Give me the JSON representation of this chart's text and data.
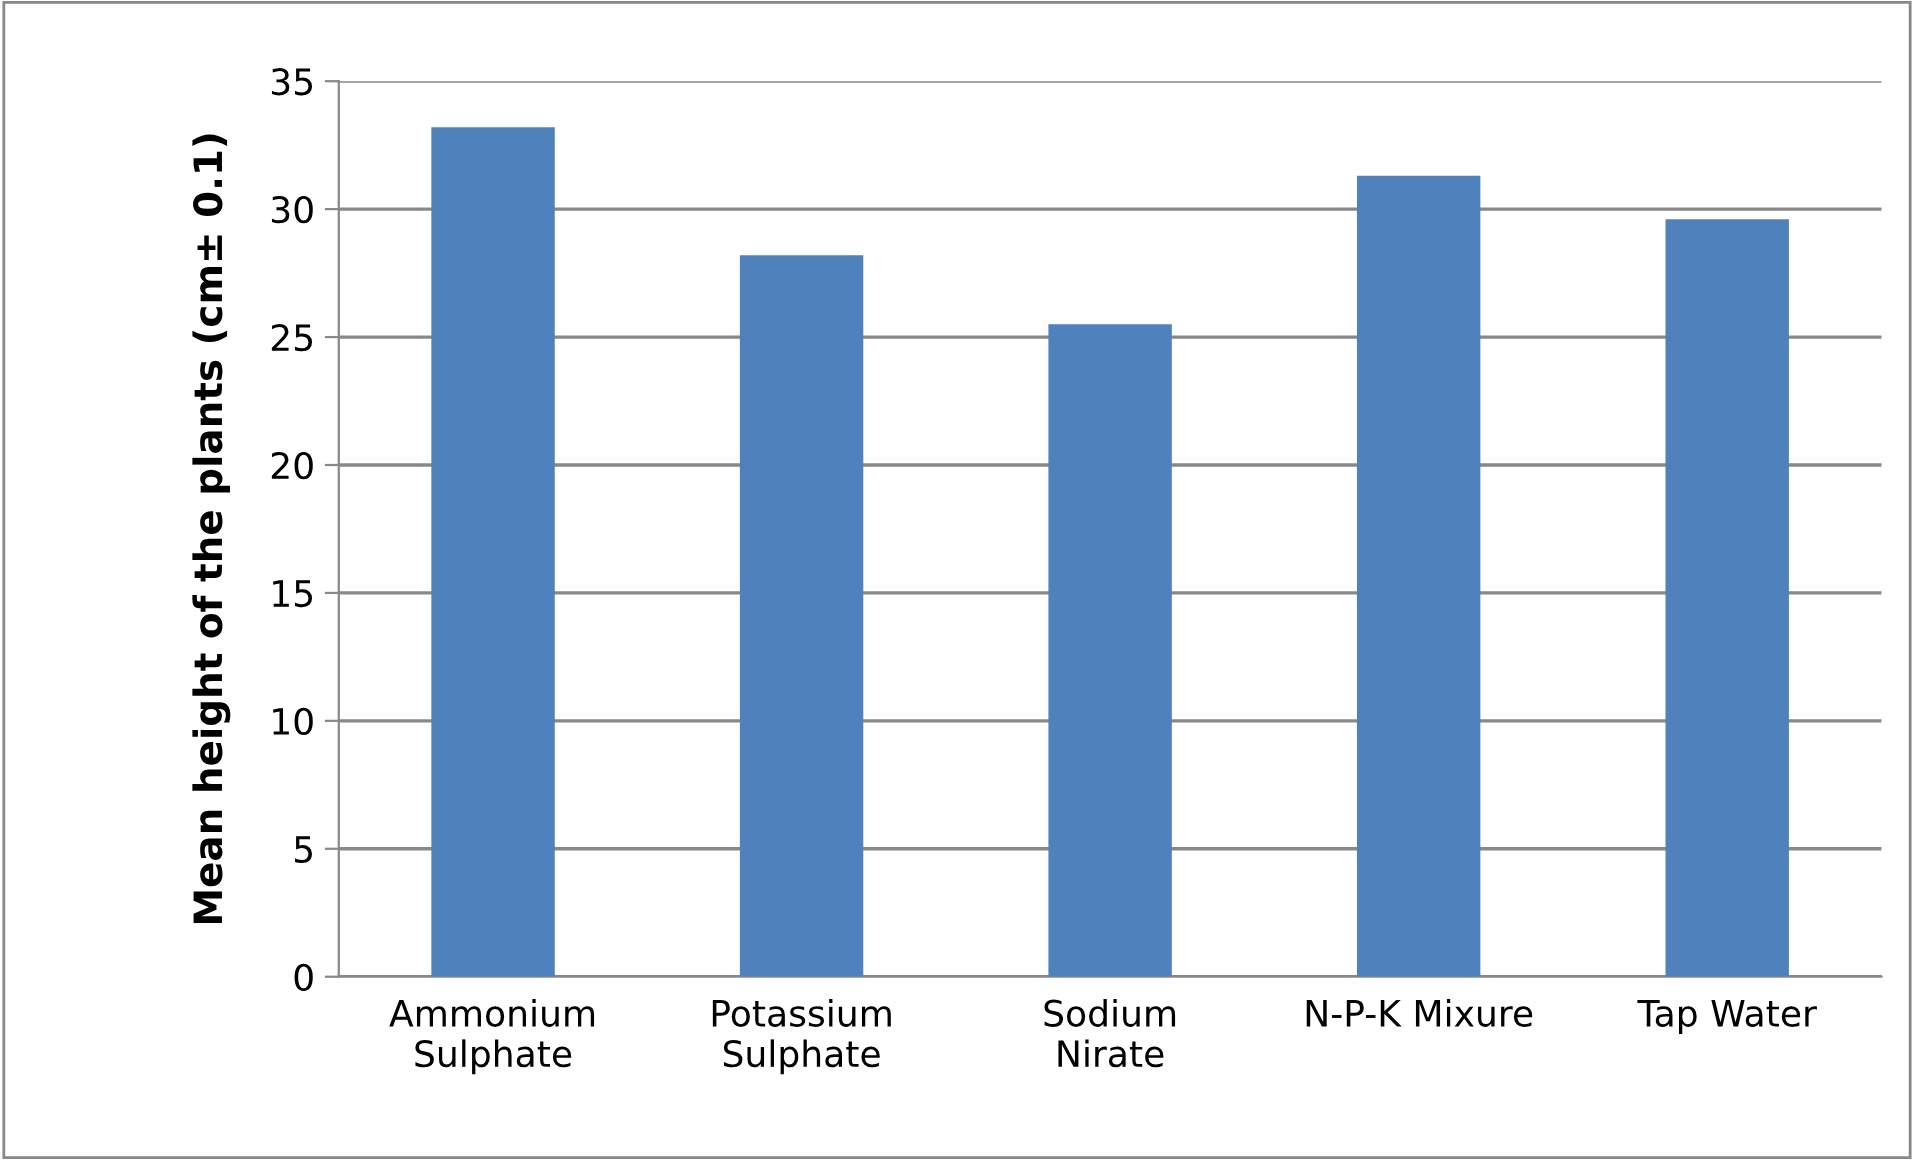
{
  "chart_data": {
    "type": "bar",
    "ylabel": "Mean height of the plants (cm± 0.1)",
    "categories": [
      "Ammonium\nSulphate",
      "Potassium\nSulphate",
      "Sodium\nNirate",
      "N-P-K Mixure",
      "Tap Water"
    ],
    "values": [
      33.2,
      28.2,
      25.5,
      31.3,
      29.6
    ],
    "color": "#4f81bd",
    "ylim": [
      0,
      35
    ],
    "yticks": [
      0,
      5,
      10,
      15,
      20,
      25,
      30,
      35
    ],
    "grid": "y"
  }
}
